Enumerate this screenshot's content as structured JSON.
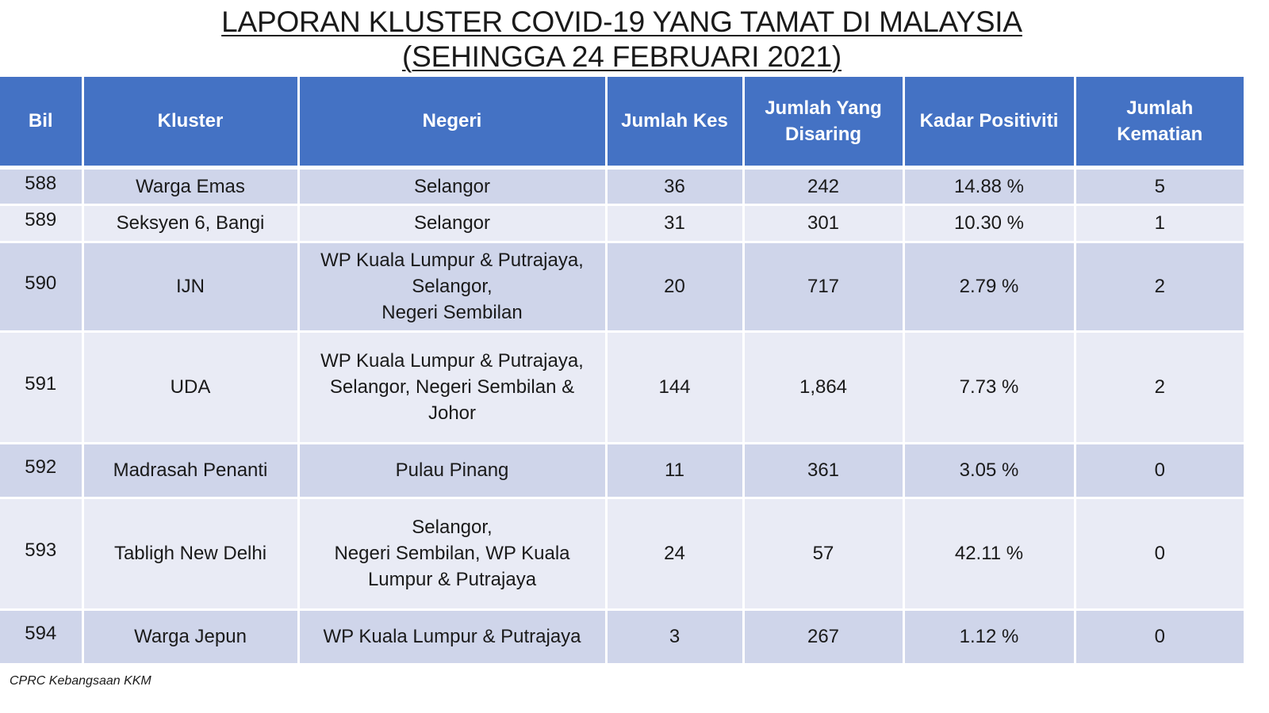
{
  "title": {
    "line1": "LAPORAN KLUSTER COVID-19 YANG TAMAT DI MALAYSIA",
    "line2": "(SEHINGGA 24 FEBRUARI 2021)"
  },
  "table": {
    "headers": {
      "bil": "Bil",
      "kluster": "Kluster",
      "negeri": "Negeri",
      "jumlah_kes": "Jumlah Kes",
      "jumlah_disaring_1": "Jumlah Yang",
      "jumlah_disaring_2": "Disaring",
      "kadar_positiviti": "Kadar Positiviti",
      "jumlah_kematian_1": "Jumlah",
      "jumlah_kematian_2": "Kematian"
    },
    "rows": [
      {
        "bil": "588",
        "kluster": "Warga Emas",
        "negeri": [
          "Selangor"
        ],
        "jumlah_kes": "36",
        "jumlah_disaring": "242",
        "kadar_positiviti": "14.88 %",
        "jumlah_kematian": "5"
      },
      {
        "bil": "589",
        "kluster": "Seksyen 6, Bangi",
        "negeri": [
          "Selangor"
        ],
        "jumlah_kes": "31",
        "jumlah_disaring": "301",
        "kadar_positiviti": "10.30 %",
        "jumlah_kematian": "1"
      },
      {
        "bil": "590",
        "kluster": "IJN",
        "negeri": [
          "WP Kuala Lumpur & Putrajaya,",
          "Selangor,",
          "Negeri Sembilan"
        ],
        "jumlah_kes": "20",
        "jumlah_disaring": "717",
        "kadar_positiviti": "2.79 %",
        "jumlah_kematian": "2"
      },
      {
        "bil": "591",
        "kluster": "UDA",
        "negeri": [
          "WP Kuala Lumpur & Putrajaya,",
          "Selangor, Negeri Sembilan &",
          "Johor"
        ],
        "jumlah_kes": "144",
        "jumlah_disaring": "1,864",
        "kadar_positiviti": "7.73 %",
        "jumlah_kematian": "2"
      },
      {
        "bil": "592",
        "kluster": "Madrasah Penanti",
        "negeri": [
          "Pulau Pinang"
        ],
        "jumlah_kes": "11",
        "jumlah_disaring": "361",
        "kadar_positiviti": "3.05 %",
        "jumlah_kematian": "0"
      },
      {
        "bil": "593",
        "kluster": "Tabligh New Delhi",
        "negeri": [
          "Selangor,",
          "Negeri Sembilan, WP Kuala",
          "Lumpur & Putrajaya"
        ],
        "jumlah_kes": "24",
        "jumlah_disaring": "57",
        "kadar_positiviti": "42.11 %",
        "jumlah_kematian": "0"
      },
      {
        "bil": "594",
        "kluster": "Warga Jepun",
        "negeri": [
          "WP Kuala Lumpur & Putrajaya"
        ],
        "jumlah_kes": "3",
        "jumlah_disaring": "267",
        "kadar_positiviti": "1.12 %",
        "jumlah_kematian": "0"
      }
    ]
  },
  "footer": {
    "source": "CPRC Kebangsaan KKM"
  }
}
